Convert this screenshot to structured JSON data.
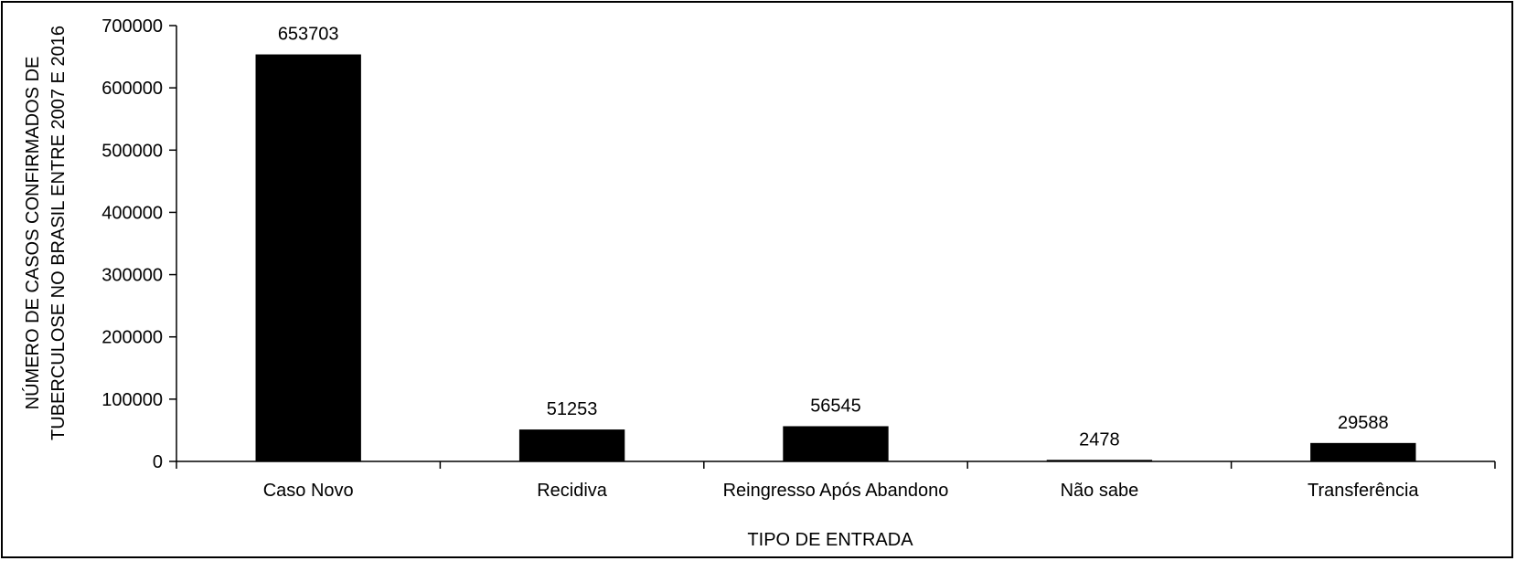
{
  "chart_data": {
    "type": "bar",
    "title": "",
    "xlabel": "TIPO DE ENTRADA",
    "ylabel_lines": [
      "NÚMERO DE CASOS CONFIRMADOS DE",
      "TUBERCULOSE NO BRASIL ENTRE 2007 E 2016"
    ],
    "categories": [
      "Caso Novo",
      "Recidiva",
      "Reingresso Após Abandono",
      "Não sabe",
      "Transferência"
    ],
    "values": [
      653703,
      51253,
      56545,
      2478,
      29588
    ],
    "data_labels": [
      "653703",
      "51253",
      "56545",
      "2478",
      "29588"
    ],
    "ylim": [
      0,
      700000
    ],
    "yticks": [
      0,
      100000,
      200000,
      300000,
      400000,
      500000,
      600000,
      700000
    ],
    "ytick_labels": [
      "0",
      "100000",
      "200000",
      "300000",
      "400000",
      "500000",
      "600000",
      "700000"
    ],
    "grid": false,
    "legend": "none",
    "bar_color": "#000000"
  }
}
